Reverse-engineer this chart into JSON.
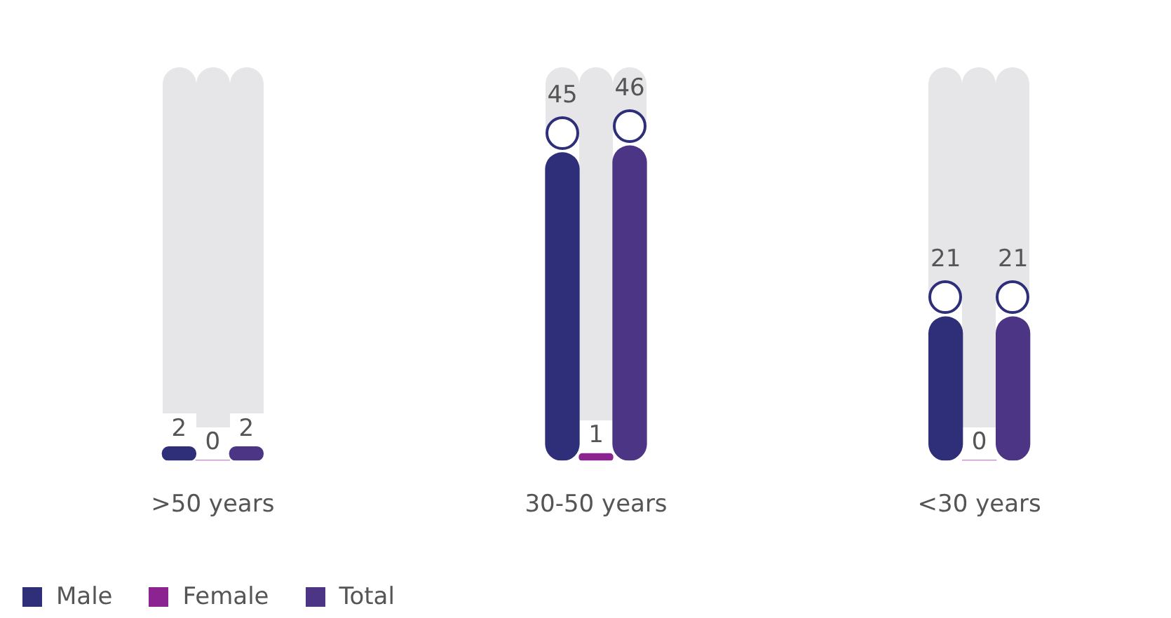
{
  "chart_data": {
    "type": "bar",
    "categories": [
      ">50 years",
      "30-50 years",
      "<30 years"
    ],
    "data_labels": true,
    "legend": "bottom left",
    "series": [
      {
        "name": "Male",
        "color": "#2e2f78",
        "values": [
          2,
          45,
          21
        ]
      },
      {
        "name": "Female",
        "color": "#8b2390",
        "values": [
          0,
          1,
          0
        ]
      },
      {
        "name": "Total",
        "color": "#4d3585",
        "values": [
          2,
          46,
          21
        ]
      }
    ]
  }
}
